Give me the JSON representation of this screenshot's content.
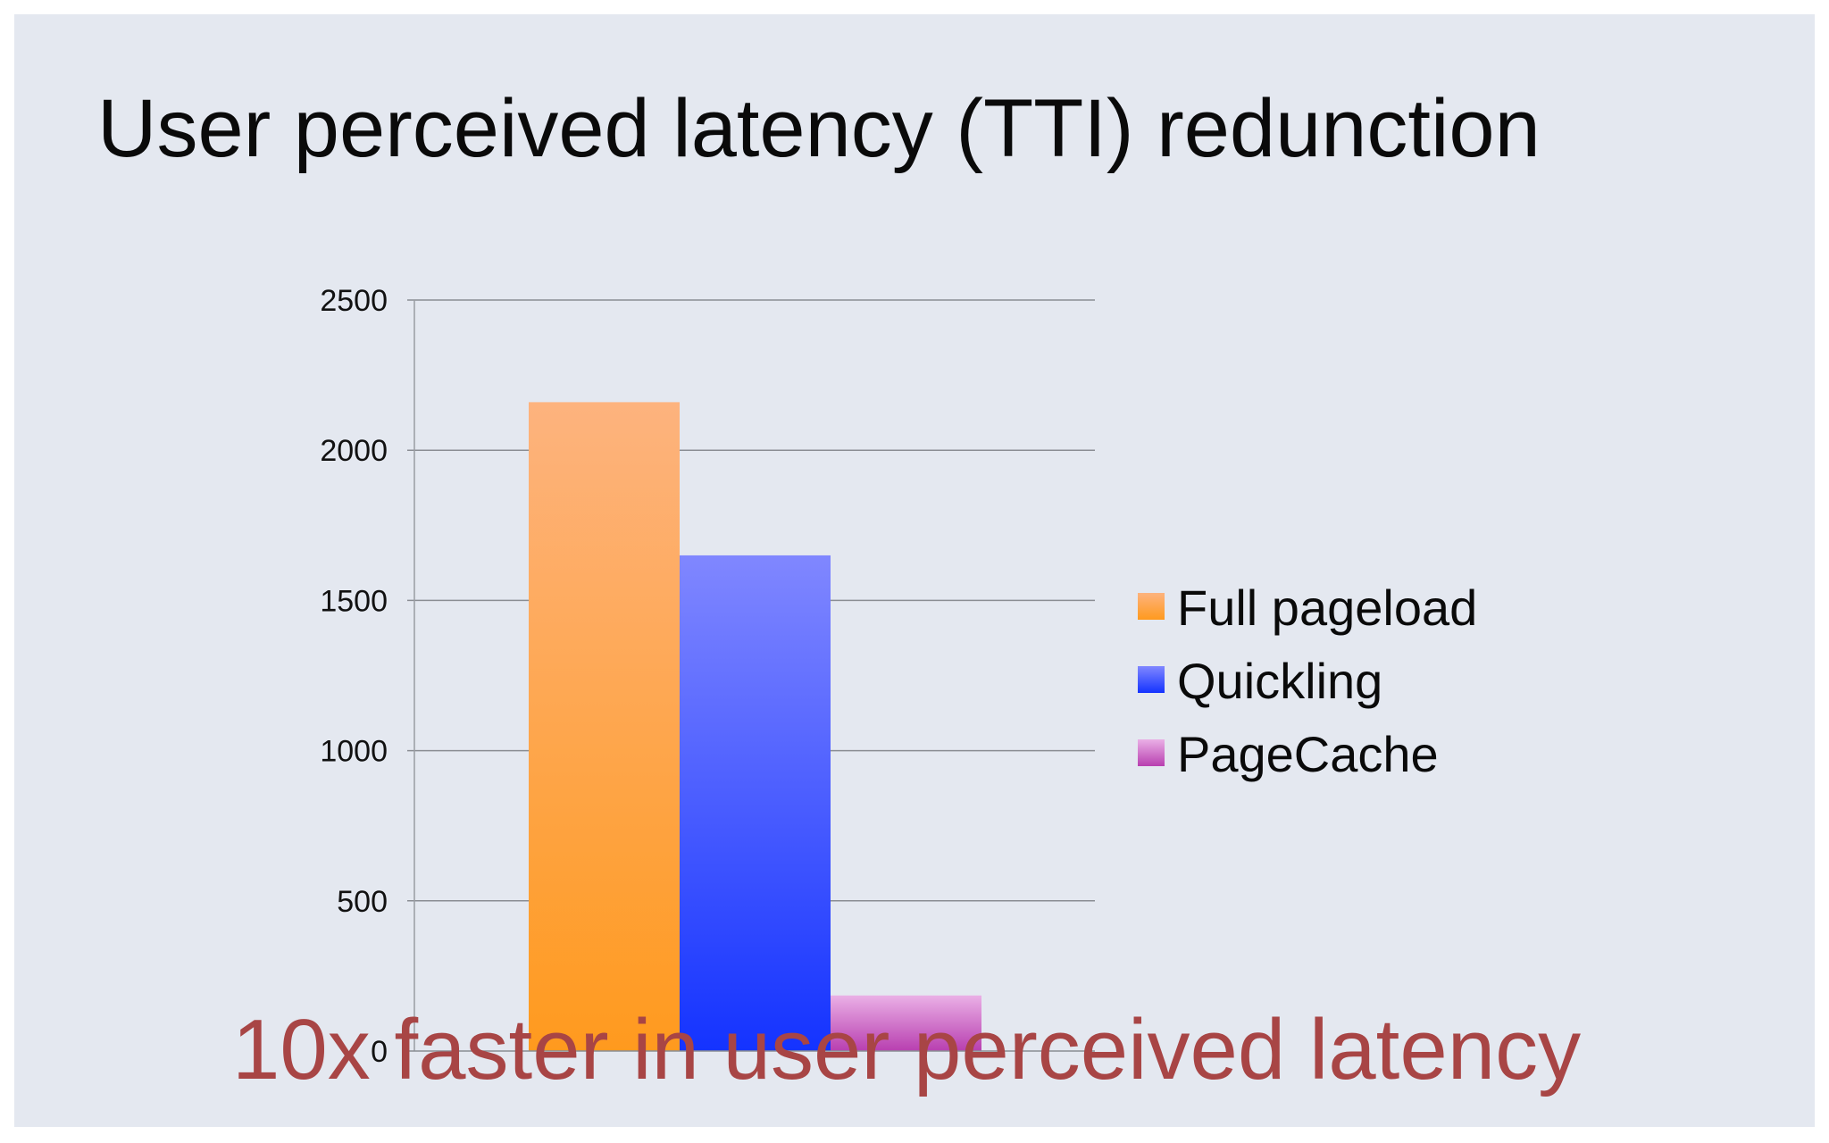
{
  "slide": {
    "title": "User perceived latency (TTI) redunction",
    "callout": "10x faster in user perceived latency"
  },
  "chart_data": {
    "type": "bar",
    "title": "",
    "xlabel": "",
    "ylabel": "",
    "ylim": [
      0,
      2500
    ],
    "yticks": [
      0,
      500,
      1000,
      1500,
      2000,
      2500
    ],
    "grid": true,
    "legend_position": "right",
    "categories": [
      ""
    ],
    "series": [
      {
        "name": "Full pageload",
        "values": [
          2160
        ],
        "color": "#ff9a1e",
        "color_light": "#fdb37e"
      },
      {
        "name": "Quickling",
        "values": [
          1650
        ],
        "color": "#1433ff",
        "color_light": "#8087ff"
      },
      {
        "name": "PageCache",
        "values": [
          185
        ],
        "color": "#b83fb0",
        "color_light": "#eab0e6"
      }
    ]
  }
}
